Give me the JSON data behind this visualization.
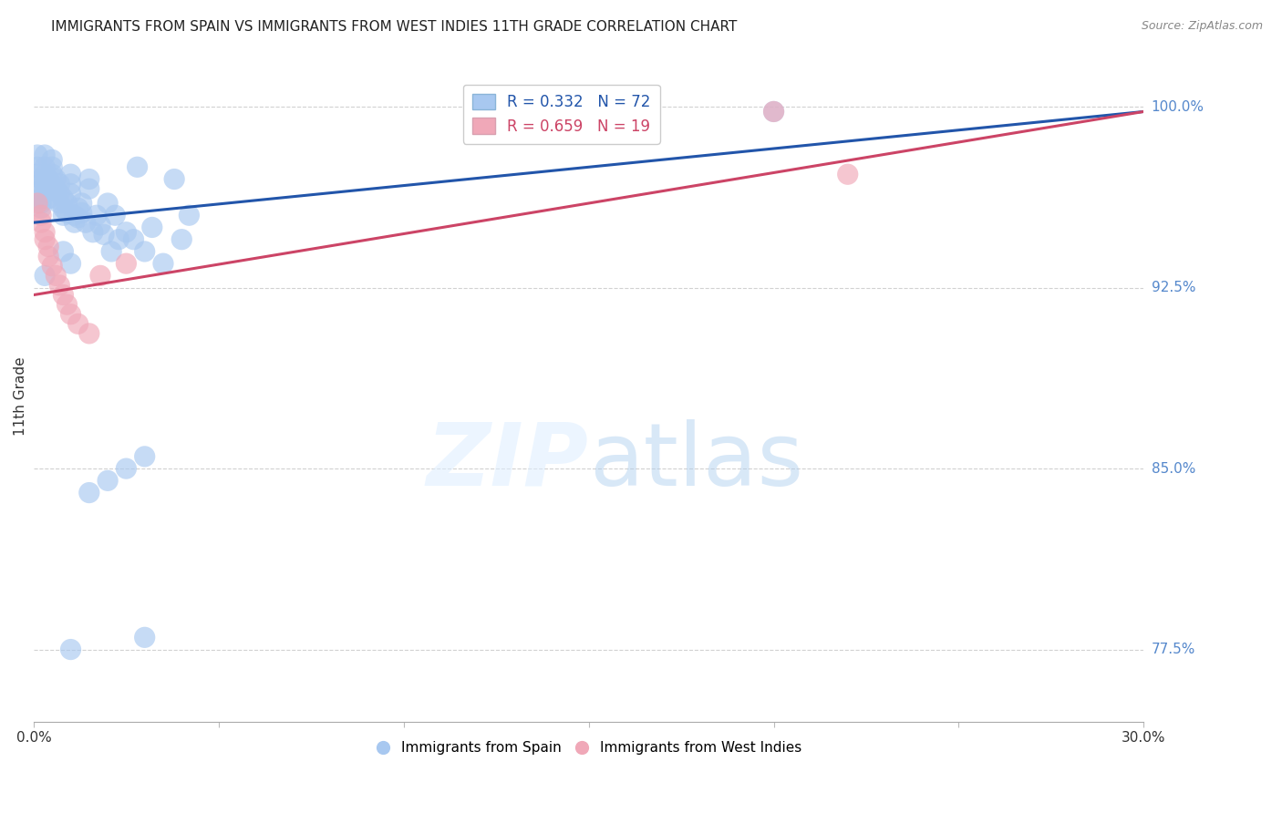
{
  "title": "IMMIGRANTS FROM SPAIN VS IMMIGRANTS FROM WEST INDIES 11TH GRADE CORRELATION CHART",
  "source": "Source: ZipAtlas.com",
  "ylabel": "11th Grade",
  "ylabel_right_ticks": [
    "77.5%",
    "85.0%",
    "92.5%",
    "100.0%"
  ],
  "ylabel_right_vals": [
    0.775,
    0.85,
    0.925,
    1.0
  ],
  "xmin": 0.0,
  "xmax": 0.3,
  "ymin": 0.745,
  "ymax": 1.015,
  "legend_blue_r": "R = 0.332",
  "legend_blue_n": "N = 72",
  "legend_pink_r": "R = 0.659",
  "legend_pink_n": "N = 19",
  "blue_color": "#a8c8f0",
  "blue_line_color": "#2255aa",
  "pink_color": "#f0a8b8",
  "pink_line_color": "#cc4466",
  "background_color": "#ffffff",
  "grid_color": "#cccccc",
  "title_color": "#222222",
  "right_axis_color": "#5588cc",
  "blue_scatter_x": [
    0.001,
    0.001,
    0.001,
    0.002,
    0.002,
    0.002,
    0.002,
    0.002,
    0.002,
    0.003,
    0.003,
    0.003,
    0.003,
    0.003,
    0.004,
    0.004,
    0.004,
    0.004,
    0.005,
    0.005,
    0.005,
    0.005,
    0.006,
    0.006,
    0.006,
    0.007,
    0.007,
    0.007,
    0.008,
    0.008,
    0.008,
    0.009,
    0.009,
    0.01,
    0.01,
    0.01,
    0.011,
    0.011,
    0.012,
    0.012,
    0.013,
    0.013,
    0.014,
    0.015,
    0.015,
    0.016,
    0.017,
    0.018,
    0.019,
    0.02,
    0.021,
    0.022,
    0.023,
    0.025,
    0.027,
    0.028,
    0.03,
    0.032,
    0.035,
    0.038,
    0.04,
    0.042,
    0.003,
    0.008,
    0.01,
    0.015,
    0.02,
    0.025,
    0.03,
    0.2,
    0.01,
    0.03
  ],
  "blue_scatter_y": [
    0.98,
    0.975,
    0.972,
    0.97,
    0.968,
    0.965,
    0.962,
    0.96,
    0.958,
    0.98,
    0.975,
    0.972,
    0.968,
    0.965,
    0.97,
    0.968,
    0.965,
    0.962,
    0.978,
    0.975,
    0.972,
    0.968,
    0.97,
    0.966,
    0.962,
    0.968,
    0.964,
    0.96,
    0.962,
    0.958,
    0.955,
    0.96,
    0.956,
    0.972,
    0.968,
    0.964,
    0.955,
    0.952,
    0.958,
    0.954,
    0.96,
    0.956,
    0.952,
    0.97,
    0.966,
    0.948,
    0.955,
    0.951,
    0.947,
    0.96,
    0.94,
    0.955,
    0.945,
    0.948,
    0.945,
    0.975,
    0.94,
    0.95,
    0.935,
    0.97,
    0.945,
    0.955,
    0.93,
    0.94,
    0.935,
    0.84,
    0.845,
    0.85,
    0.855,
    0.998,
    0.775,
    0.78
  ],
  "pink_scatter_x": [
    0.001,
    0.002,
    0.002,
    0.003,
    0.003,
    0.004,
    0.004,
    0.005,
    0.006,
    0.007,
    0.008,
    0.009,
    0.01,
    0.012,
    0.015,
    0.018,
    0.025,
    0.2,
    0.22
  ],
  "pink_scatter_y": [
    0.96,
    0.955,
    0.952,
    0.948,
    0.945,
    0.942,
    0.938,
    0.934,
    0.93,
    0.926,
    0.922,
    0.918,
    0.914,
    0.91,
    0.906,
    0.93,
    0.935,
    0.998,
    0.972
  ],
  "blue_trend_x0": 0.0,
  "blue_trend_x1": 0.3,
  "blue_trend_y0": 0.952,
  "blue_trend_y1": 0.998,
  "pink_trend_x0": 0.0,
  "pink_trend_x1": 0.3,
  "pink_trend_y0": 0.922,
  "pink_trend_y1": 0.998
}
